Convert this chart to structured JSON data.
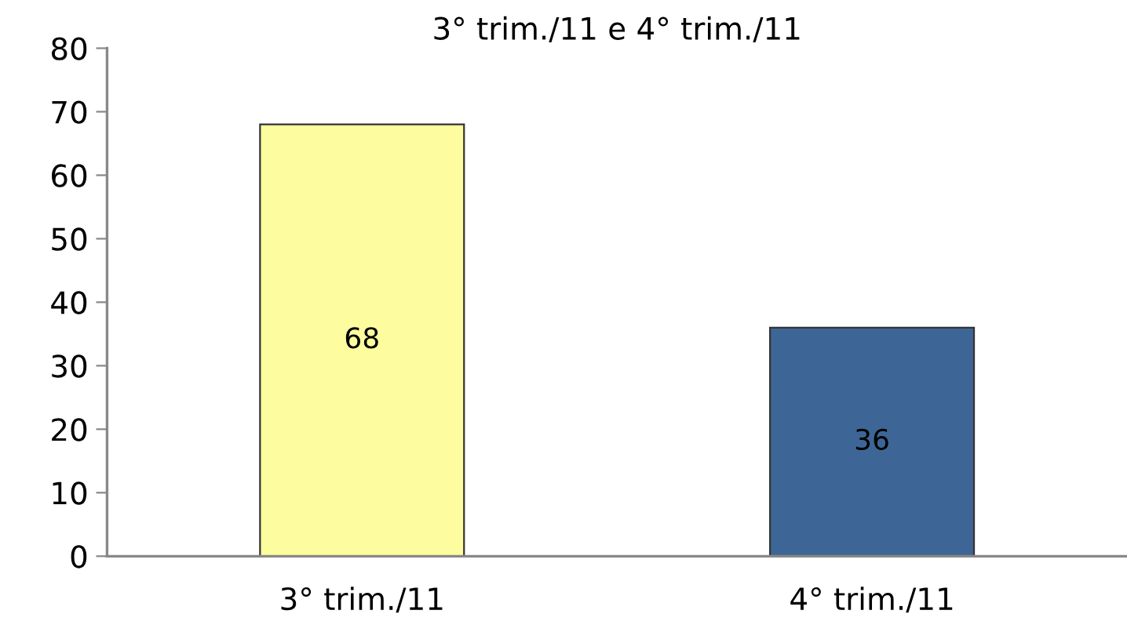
{
  "chart_data": {
    "type": "bar",
    "title": "3° trim./11 e 4° trim./11",
    "categories": [
      "3° trim./11",
      "4° trim./11"
    ],
    "values": [
      68,
      36
    ],
    "colors": [
      "#fdfd9f",
      "#3d6697"
    ],
    "ylim": [
      0,
      80
    ],
    "yticks": [
      0,
      10,
      20,
      30,
      40,
      50,
      60,
      70,
      80
    ],
    "data_labels": true,
    "grid": false,
    "legend": false
  }
}
